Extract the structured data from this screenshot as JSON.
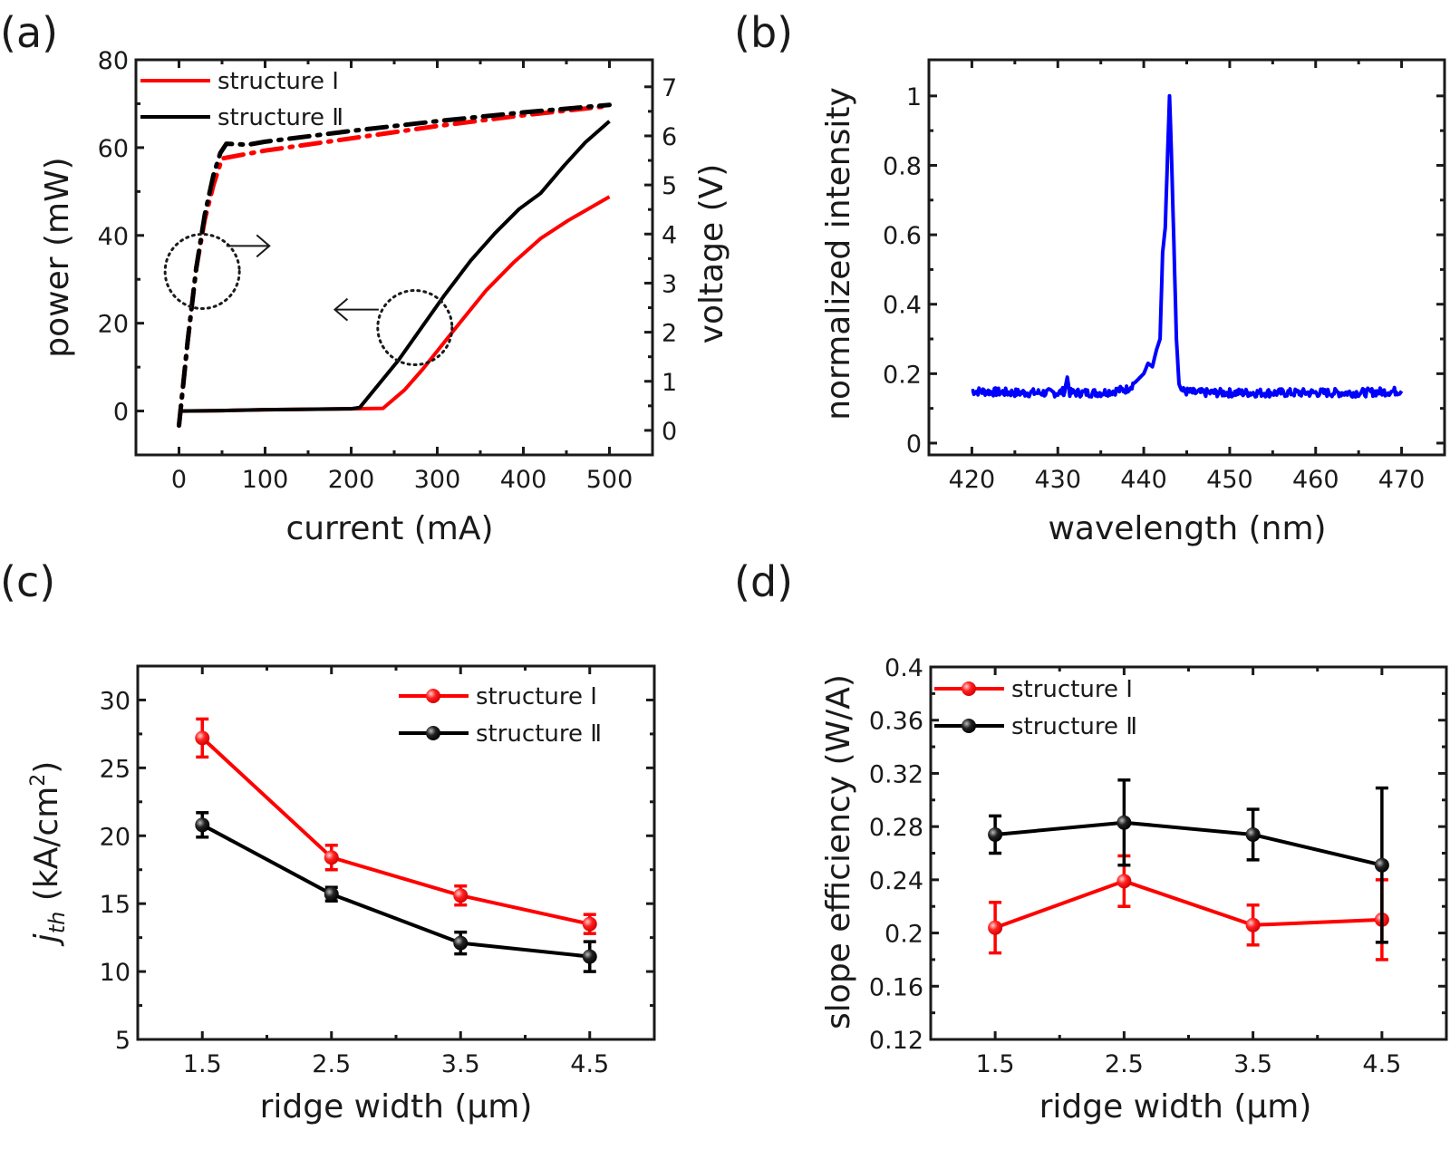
{
  "figure": {
    "panels": [
      "(a)",
      "(b)",
      "(c)",
      "(d)"
    ]
  },
  "colors": {
    "structure_I": "#ff0000",
    "structure_II": "#000000",
    "spectrum": "#0000ff",
    "axis": "#1a1a1a"
  },
  "chart_data": [
    {
      "id": "a",
      "panel_label": "(a)",
      "type": "line",
      "xlabel": "current (mA)",
      "ylabel": "power (mW)",
      "ylabel_right": "voltage (V)",
      "xlim": [
        -50,
        550
      ],
      "ylim": [
        -10,
        80
      ],
      "ylim_right": [
        -0.5,
        7.55
      ],
      "xticks": [
        0,
        100,
        200,
        300,
        400,
        500
      ],
      "yticks": [
        0,
        20,
        40,
        60,
        80
      ],
      "yticks_right": [
        0,
        1,
        2,
        3,
        4,
        5,
        6,
        7
      ],
      "legend": {
        "placement": "top-left",
        "entries": [
          "structure Ⅰ",
          "structure Ⅱ"
        ]
      },
      "series": [
        {
          "name": "structure Ⅰ",
          "axis": "left",
          "style": "solid",
          "quantity": "power",
          "x": [
            0,
            50,
            100,
            150,
            200,
            237,
            262,
            283,
            325,
            357,
            388,
            420,
            452,
            500
          ],
          "y": [
            0,
            0.1,
            0.3,
            0.4,
            0.5,
            0.6,
            4.8,
            9.5,
            19.8,
            27.5,
            33.7,
            39.3,
            43.4,
            48.8
          ]
        },
        {
          "name": "structure Ⅱ",
          "axis": "left",
          "style": "solid",
          "quantity": "power",
          "x": [
            0,
            50,
            100,
            150,
            200,
            210,
            255,
            307,
            339,
            367,
            395,
            420,
            447,
            472,
            500
          ],
          "y": [
            0,
            0.1,
            0.3,
            0.4,
            0.5,
            0.8,
            11.6,
            26,
            34.3,
            40.5,
            46,
            49.6,
            55.8,
            61.2,
            66
          ]
        },
        {
          "name": "structure Ⅰ",
          "axis": "right",
          "style": "dashdot",
          "quantity": "voltage",
          "x": [
            0,
            10,
            20,
            30,
            40,
            50,
            100,
            200,
            300,
            400,
            500
          ],
          "y": [
            0.1,
            1.8,
            3.3,
            4.3,
            5.0,
            5.54,
            5.7,
            5.95,
            6.2,
            6.42,
            6.61
          ]
        },
        {
          "name": "structure Ⅱ",
          "axis": "right",
          "style": "dashdot",
          "quantity": "voltage",
          "x": [
            0,
            10,
            20,
            30,
            40,
            48,
            55,
            80,
            100,
            200,
            300,
            400,
            500
          ],
          "y": [
            0.1,
            1.8,
            3.3,
            4.4,
            5.2,
            5.65,
            5.84,
            5.82,
            5.88,
            6.1,
            6.3,
            6.48,
            6.63
          ]
        }
      ],
      "annotations": [
        {
          "type": "dotted-circle",
          "x": 27,
          "y": 31.8,
          "points_to": "right-axis"
        },
        {
          "type": "arrow",
          "direction": "right",
          "x_from": 55,
          "x_to": 105,
          "y": 37.6
        },
        {
          "type": "dotted-circle",
          "x": 274,
          "y": 19,
          "points_to": "left-axis"
        },
        {
          "type": "arrow",
          "direction": "left",
          "x_from": 232,
          "x_to": 181,
          "y": 23.1
        }
      ]
    },
    {
      "id": "b",
      "panel_label": "(b)",
      "type": "line",
      "xlabel": "wavelength (nm)",
      "ylabel": "normalized intensity",
      "xlim": [
        415,
        475
      ],
      "ylim": [
        -0.034,
        1.104
      ],
      "xticks": [
        420,
        430,
        440,
        450,
        460,
        470
      ],
      "yticks": [
        0,
        0.2,
        0.4,
        0.6,
        0.8,
        1
      ],
      "ytick_labels": [
        "0",
        "0.2",
        "0.4",
        "0.6",
        "0.8",
        "1"
      ],
      "series": [
        {
          "name": "spectrum",
          "baseline": 0.145,
          "noise_amplitude": 0.012,
          "x": [
            420,
            425,
            430,
            430.8,
            431.1,
            431.4,
            435,
            438,
            439,
            440,
            440.5,
            441,
            441.5,
            441.9,
            442.2,
            442.5,
            442.8,
            443.0,
            443.2,
            443.5,
            443.8,
            444.1,
            444.5,
            446,
            450,
            455,
            460,
            465,
            470
          ],
          "y": [
            0.15,
            0.145,
            0.145,
            0.15,
            0.19,
            0.145,
            0.145,
            0.155,
            0.175,
            0.2,
            0.23,
            0.22,
            0.27,
            0.3,
            0.55,
            0.62,
            0.85,
            1.0,
            0.85,
            0.58,
            0.3,
            0.17,
            0.15,
            0.145,
            0.145,
            0.145,
            0.145,
            0.145,
            0.15
          ]
        }
      ]
    },
    {
      "id": "c",
      "panel_label": "(c)",
      "type": "line",
      "xlabel": "ridge width (μm)",
      "ylabel_main": "j",
      "ylabel_sub": "th",
      "ylabel_unit": " (kA/cm",
      "ylabel_sup": "2",
      "ylabel_close": ")",
      "xlim": [
        1,
        5
      ],
      "ylim": [
        5,
        32.5
      ],
      "xticks": [
        1.5,
        2.5,
        3.5,
        4.5
      ],
      "xtick_labels": [
        "1.5",
        "2.5",
        "3.5",
        "4.5"
      ],
      "yticks": [
        5,
        10,
        15,
        20,
        25,
        30
      ],
      "legend": {
        "placement": "top-right",
        "entries": [
          "structure Ⅰ",
          "structure Ⅱ"
        ]
      },
      "series": [
        {
          "name": "structure Ⅰ",
          "x": [
            1.5,
            2.5,
            3.5,
            4.5
          ],
          "y": [
            27.2,
            18.4,
            15.6,
            13.5
          ],
          "err": [
            1.4,
            0.9,
            0.7,
            0.7
          ]
        },
        {
          "name": "structure Ⅱ",
          "x": [
            1.5,
            2.5,
            3.5,
            4.5
          ],
          "y": [
            20.8,
            15.7,
            12.1,
            11.1
          ],
          "err": [
            0.9,
            0.5,
            0.8,
            1.1
          ]
        }
      ]
    },
    {
      "id": "d",
      "panel_label": "(d)",
      "type": "line",
      "xlabel": "ridge width (μm)",
      "ylabel": "slope efficiency (W/A)",
      "xlim": [
        1,
        5
      ],
      "ylim": [
        0.12,
        0.4
      ],
      "xticks": [
        1.5,
        2.5,
        3.5,
        4.5
      ],
      "xtick_labels": [
        "1.5",
        "2.5",
        "3.5",
        "4.5"
      ],
      "yticks": [
        0.12,
        0.16,
        0.2,
        0.24,
        0.28,
        0.32,
        0.36,
        0.4
      ],
      "ytick_labels": [
        "0.12",
        "0.16",
        "0.2",
        "0.24",
        "0.28",
        "0.32",
        "0.36",
        "0.4"
      ],
      "legend": {
        "placement": "top-left",
        "entries": [
          "structure Ⅰ",
          "structure Ⅱ"
        ]
      },
      "series": [
        {
          "name": "structure Ⅰ",
          "x": [
            1.5,
            2.5,
            3.5,
            4.5
          ],
          "y": [
            0.204,
            0.239,
            0.206,
            0.21
          ],
          "err": [
            0.019,
            0.019,
            0.015,
            0.03
          ]
        },
        {
          "name": "structure Ⅱ",
          "x": [
            1.5,
            2.5,
            3.5,
            4.5
          ],
          "y": [
            0.274,
            0.283,
            0.274,
            0.251
          ],
          "err": [
            0.014,
            0.032,
            0.019,
            0.058
          ]
        }
      ]
    }
  ]
}
